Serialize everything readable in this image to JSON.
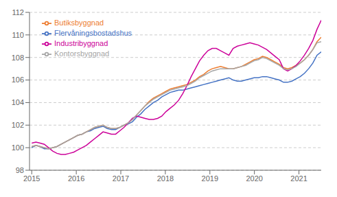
{
  "chart_data": {
    "type": "line",
    "x": [
      2015,
      2015.0942,
      2015.1884,
      2015.2826,
      2015.3768,
      2015.471,
      2015.5652,
      2015.6594,
      2015.7536,
      2015.8478,
      2015.942,
      2016.0362,
      2016.1304,
      2016.2246,
      2016.3188,
      2016.413,
      2016.5072,
      2016.6014,
      2016.6957,
      2016.7899,
      2016.8841,
      2016.9783,
      2017.0725,
      2017.1667,
      2017.2609,
      2017.3551,
      2017.4493,
      2017.5435,
      2017.6377,
      2017.7319,
      2017.8261,
      2017.9203,
      2018.0145,
      2018.1087,
      2018.2029,
      2018.2971,
      2018.3913,
      2018.4855,
      2018.5797,
      2018.6739,
      2018.7681,
      2018.8623,
      2018.9565,
      2019.0507,
      2019.1449,
      2019.2391,
      2019.3333,
      2019.4275,
      2019.5217,
      2019.6159,
      2019.7101,
      2019.8043,
      2019.8986,
      2019.9928,
      2020.087,
      2020.1812,
      2020.2754,
      2020.3696,
      2020.4638,
      2020.558,
      2020.6522,
      2020.7464,
      2020.8406,
      2020.9348,
      2021.029,
      2021.1232,
      2021.2174,
      2021.3116,
      2021.4058,
      2021.5
    ],
    "series": [
      {
        "name": "Flervåningsbostadshus",
        "color": "#4472C4",
        "values": [
          100.0,
          100.2,
          100.1,
          99.9,
          99.9,
          100.0,
          100.1,
          100.3,
          100.5,
          100.7,
          100.9,
          101.1,
          101.2,
          101.4,
          101.5,
          101.7,
          101.8,
          101.9,
          101.7,
          101.6,
          101.6,
          101.8,
          102.0,
          102.1,
          102.3,
          102.7,
          103.0,
          103.4,
          103.7,
          104.0,
          104.2,
          104.5,
          104.7,
          104.9,
          105.0,
          105.1,
          105.1,
          105.2,
          105.3,
          105.4,
          105.5,
          105.6,
          105.7,
          105.8,
          105.9,
          106.0,
          106.1,
          106.2,
          106.0,
          105.9,
          105.9,
          106.0,
          106.1,
          106.2,
          106.2,
          106.3,
          106.3,
          106.2,
          106.1,
          106.0,
          105.8,
          105.8,
          105.9,
          106.1,
          106.3,
          106.6,
          107.0,
          107.5,
          108.2,
          108.5
        ]
      },
      {
        "name": "Butiksbyggnad",
        "color": "#ED7D31",
        "values": [
          100.1,
          100.2,
          100.1,
          100.0,
          99.9,
          100.0,
          100.1,
          100.3,
          100.5,
          100.7,
          100.9,
          101.1,
          101.2,
          101.4,
          101.6,
          101.8,
          101.9,
          102.0,
          101.8,
          101.7,
          101.7,
          101.8,
          102.0,
          102.2,
          102.5,
          102.9,
          103.3,
          103.7,
          104.1,
          104.4,
          104.6,
          104.8,
          105.0,
          105.2,
          105.3,
          105.4,
          105.5,
          105.6,
          105.8,
          106.0,
          106.3,
          106.5,
          106.8,
          107.0,
          107.1,
          107.2,
          107.1,
          107.0,
          107.0,
          107.1,
          107.2,
          107.4,
          107.6,
          107.8,
          107.9,
          108.1,
          108.0,
          107.8,
          107.6,
          107.4,
          107.1,
          107.0,
          107.1,
          107.3,
          107.5,
          107.8,
          108.2,
          108.7,
          109.4,
          109.8
        ]
      },
      {
        "name": "Industribyggnad",
        "color": "#CC0099",
        "values": [
          100.4,
          100.5,
          100.4,
          100.3,
          100.0,
          99.7,
          99.5,
          99.4,
          99.4,
          99.5,
          99.6,
          99.8,
          100.0,
          100.2,
          100.5,
          100.8,
          101.1,
          101.4,
          101.3,
          101.2,
          101.2,
          101.5,
          101.8,
          102.2,
          102.6,
          102.8,
          102.7,
          102.6,
          102.5,
          102.5,
          102.6,
          102.8,
          103.2,
          103.5,
          103.8,
          104.2,
          104.8,
          105.5,
          106.3,
          107.0,
          107.7,
          108.2,
          108.6,
          108.8,
          108.8,
          108.6,
          108.4,
          108.2,
          108.8,
          109.0,
          109.1,
          109.2,
          109.3,
          109.2,
          109.1,
          108.9,
          108.7,
          108.4,
          108.1,
          107.8,
          107.0,
          106.8,
          107.0,
          107.3,
          107.7,
          108.2,
          108.8,
          109.5,
          110.5,
          111.3
        ]
      },
      {
        "name": "Kontorsbyggnad",
        "color": "#A5A5A5",
        "values": [
          100.1,
          100.2,
          100.1,
          100.0,
          99.9,
          100.0,
          100.1,
          100.3,
          100.5,
          100.7,
          100.9,
          101.1,
          101.2,
          101.4,
          101.6,
          101.8,
          101.9,
          102.0,
          101.8,
          101.7,
          101.7,
          101.8,
          102.0,
          102.2,
          102.5,
          102.9,
          103.3,
          103.7,
          104.0,
          104.3,
          104.5,
          104.7,
          104.9,
          105.1,
          105.2,
          105.3,
          105.4,
          105.5,
          105.7,
          105.9,
          106.2,
          106.4,
          106.6,
          106.8,
          106.9,
          107.0,
          107.0,
          107.0,
          107.0,
          107.1,
          107.2,
          107.3,
          107.5,
          107.7,
          107.8,
          108.0,
          107.9,
          107.7,
          107.5,
          107.3,
          107.0,
          106.9,
          107.0,
          107.2,
          107.5,
          107.8,
          108.2,
          108.7,
          109.3,
          109.4
        ]
      }
    ],
    "xlim": [
      2014.95,
      2021.5
    ],
    "xticks": [
      2015,
      2016,
      2017,
      2018,
      2019,
      2020,
      2021
    ],
    "ylim": [
      98,
      112
    ],
    "yticks": [
      98,
      100,
      102,
      104,
      106,
      108,
      110,
      112
    ],
    "grid": true,
    "legend": "upper left"
  }
}
